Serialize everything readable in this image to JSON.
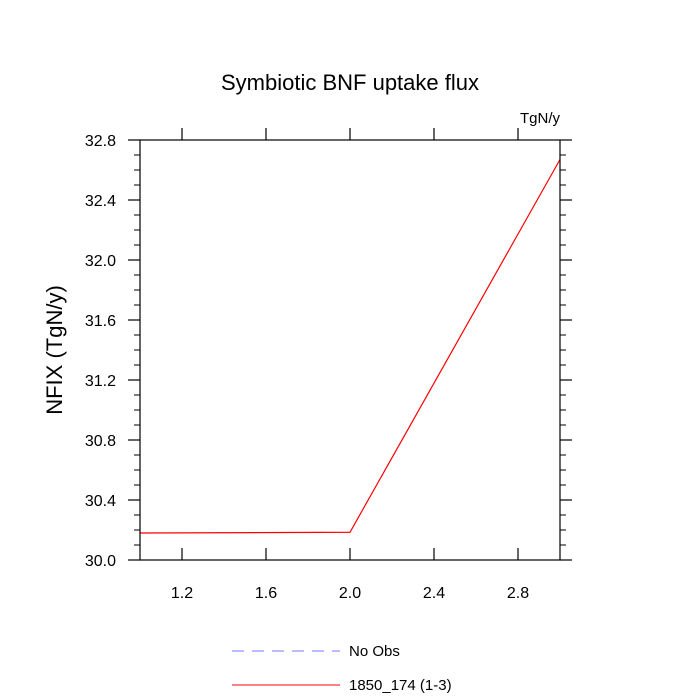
{
  "chart_data": {
    "type": "line",
    "title": "Symbiotic BNF uptake flux",
    "units": "TgN/y",
    "xlabel": "",
    "ylabel": "NFIX  (TgN/y)",
    "xlim": [
      1.0,
      3.0
    ],
    "ylim": [
      30.0,
      32.8
    ],
    "xticks": [
      "1.2",
      "1.6",
      "2.0",
      "2.4",
      "2.8"
    ],
    "yticks": [
      "30.0",
      "30.4",
      "30.8",
      "31.2",
      "31.6",
      "32.0",
      "32.4",
      "32.8"
    ],
    "grid": false,
    "legend_position": "bottom",
    "series": [
      {
        "name": "No Obs",
        "color": "#7777ff",
        "style": "dashed",
        "x": [],
        "y": []
      },
      {
        "name": "1850_174 (1-3)",
        "color": "#ff0000",
        "style": "solid",
        "x": [
          1.0,
          2.0,
          3.0
        ],
        "y": [
          30.18,
          30.185,
          32.67
        ]
      }
    ]
  }
}
